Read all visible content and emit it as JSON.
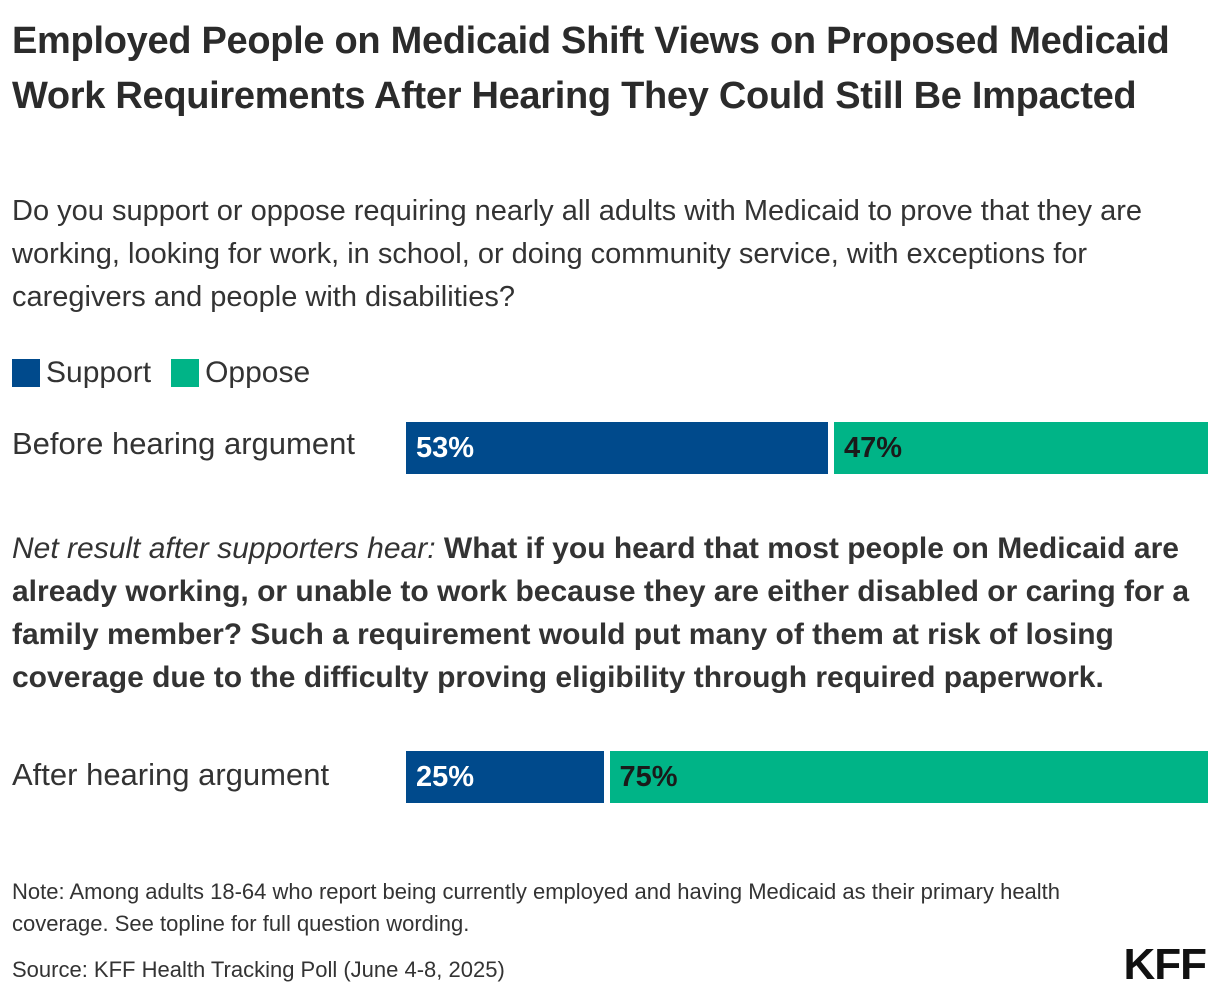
{
  "chart_data": {
    "type": "bar",
    "orientation": "horizontal",
    "stacked": true,
    "title": "Employed People on Medicaid Shift Views on Proposed Medicaid Work Requirements After Hearing They Could Still Be Impacted",
    "subtitle": "Do you support or oppose requiring nearly all adults with Medicaid to prove that they are working, looking for work, in school, or doing community service, with exceptions for caregivers and people with disabilities?",
    "categories": [
      "Before hearing argument",
      "After hearing argument"
    ],
    "series": [
      {
        "name": "Support",
        "color": "#004a8c",
        "text_color": "#ffffff",
        "values": [
          53,
          25
        ],
        "labels": [
          "53%",
          "25%"
        ]
      },
      {
        "name": "Oppose",
        "color": "#00b487",
        "text_color": "#1a1a1a",
        "values": [
          47,
          75
        ],
        "labels": [
          "47%",
          "75%"
        ]
      }
    ],
    "xlim": [
      0,
      100
    ],
    "legend": "top-left",
    "grid": false,
    "annotations": {
      "argument_lead": "Net result after supporters hear:",
      "argument_text": "What if you heard that most people on Medicaid are already working, or unable to work because they are either disabled or caring for a family member? Such a requirement would put many of them at risk of losing coverage due to the difficulty proving eligibility through required paperwork."
    },
    "note": "Note: Among adults 18-64 who report being currently employed and having Medicaid as their primary health coverage. See topline for full question wording.",
    "source": "Source: KFF Health Tracking Poll (June 4-8, 2025)",
    "logo_text": "KFF"
  }
}
